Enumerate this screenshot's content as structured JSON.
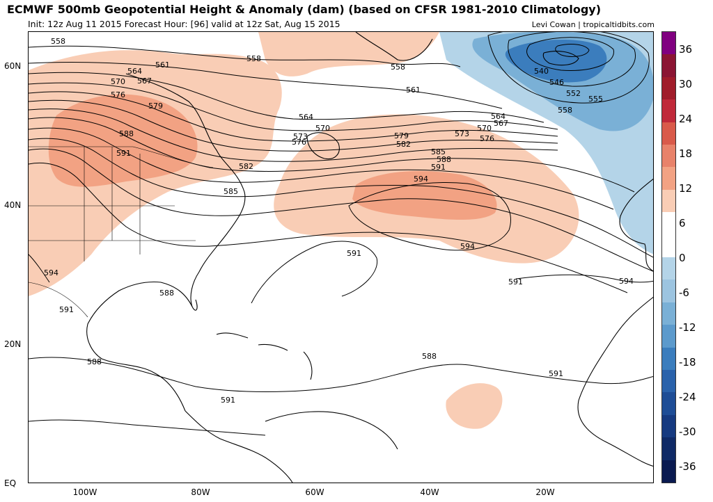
{
  "header": {
    "title": "ECMWF 500mb Geopotential Height & Anomaly (dam) (based on CFSR 1981-2010 Climatology)",
    "subtitle": "Init: 12z Aug 11 2015   Forecast Hour: [96]   valid at 12z Sat, Aug 15 2015",
    "credit": "Levi Cowan | tropicaltidbits.com"
  },
  "map": {
    "lat_labels": [
      "60N",
      "40N",
      "20N",
      "EQ"
    ],
    "lon_labels": [
      "100W",
      "80W",
      "60W",
      "40W",
      "20W"
    ],
    "contour_labels": [
      "558",
      "558",
      "558",
      "561",
      "564",
      "567",
      "570",
      "576",
      "579",
      "588",
      "591",
      "564",
      "570",
      "573",
      "576",
      "582",
      "585",
      "561",
      "564",
      "567",
      "570",
      "573",
      "576",
      "579",
      "582",
      "585",
      "588",
      "591",
      "594",
      "594",
      "591",
      "591",
      "594",
      "594",
      "588",
      "591",
      "588",
      "591",
      "591",
      "588",
      "540",
      "546",
      "552",
      "555",
      "558"
    ],
    "colors": {
      "positive_anomaly_weak": "#f9cdb5",
      "positive_anomaly_mid": "#f2a283",
      "negative_anomaly_weak": "#b4d4e8",
      "negative_anomaly_mid": "#7ab0d6",
      "negative_anomaly_strong": "#3b7dbd",
      "coastline": "#000000",
      "contour": "#000000"
    }
  },
  "colorbar": {
    "labels": [
      "36",
      "30",
      "24",
      "18",
      "12",
      "6",
      "0",
      "-6",
      "-12",
      "-18",
      "-24",
      "-30",
      "-36"
    ],
    "colors": [
      "#800080",
      "#8b1533",
      "#a01c2a",
      "#c0293a",
      "#d95a4a",
      "#e8826a",
      "#f2a283",
      "#f9cdb5",
      "#ffffff",
      "#ffffff",
      "#b4d4e8",
      "#9cc4e0",
      "#7ab0d6",
      "#5c9acc",
      "#3b7dbd",
      "#2a62ab",
      "#1e4d96",
      "#163a80",
      "#0f2a66",
      "#0a1a50"
    ]
  }
}
